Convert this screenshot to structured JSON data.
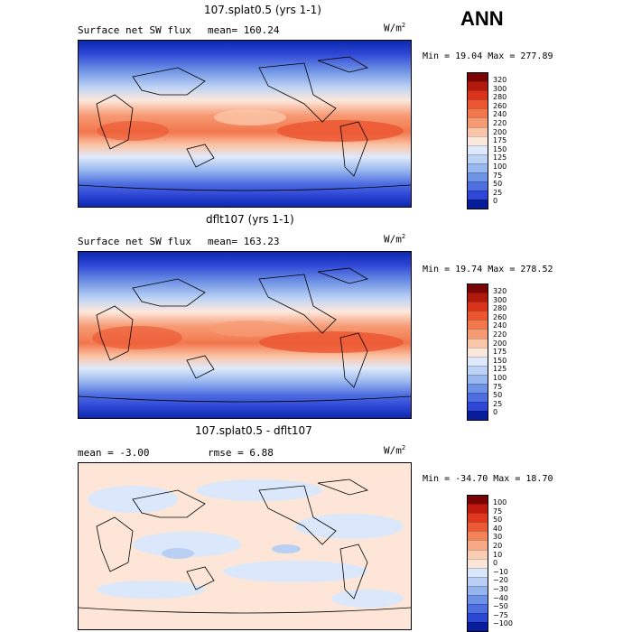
{
  "season": "ANN",
  "panels": [
    {
      "title": "107.splat0.5 (yrs 1-1)",
      "left_label": "Surface net SW flux",
      "mid_label": "mean= 160.24",
      "units": "W/m",
      "units_sup": "2",
      "minmax": "Min =  19.04 Max = 277.89",
      "levels": [
        "320",
        "300",
        "280",
        "260",
        "240",
        "220",
        "200",
        "175",
        "150",
        "125",
        "100",
        "75",
        "50",
        "25",
        "0"
      ],
      "colors": [
        "#7a0403",
        "#b01a0c",
        "#d9331b",
        "#eb5530",
        "#f2774d",
        "#f69a73",
        "#fbc5a7",
        "#fde8dc",
        "#dfe9fb",
        "#bdd3f5",
        "#99b8ef",
        "#6f93e5",
        "#4f6ee0",
        "#2f47d6",
        "#081d9b"
      ]
    },
    {
      "title": "dflt107 (yrs 1-1)",
      "left_label": "Surface net SW flux",
      "mid_label": "mean= 163.23",
      "units": "W/m",
      "units_sup": "2",
      "minmax": "Min =  19.74 Max = 278.52",
      "levels": [
        "320",
        "300",
        "280",
        "260",
        "240",
        "220",
        "200",
        "175",
        "150",
        "125",
        "100",
        "75",
        "50",
        "25",
        "0"
      ],
      "colors": [
        "#7a0403",
        "#b01a0c",
        "#d9331b",
        "#eb5530",
        "#f2774d",
        "#f69a73",
        "#fbc5a7",
        "#fde8dc",
        "#dfe9fb",
        "#bdd3f5",
        "#99b8ef",
        "#6f93e5",
        "#4f6ee0",
        "#2f47d6",
        "#081d9b"
      ]
    },
    {
      "title": "107.splat0.5 - dflt107",
      "left_label": "mean =  -3.00",
      "mid_label": "rmse =   6.88",
      "units": "W/m",
      "units_sup": "2",
      "minmax": "Min = -34.70 Max =  18.70",
      "levels": [
        "100",
        "75",
        "50",
        "40",
        "30",
        "20",
        "10",
        "0",
        "−10",
        "−20",
        "−30",
        "−40",
        "−50",
        "−75",
        "−100"
      ],
      "colors": [
        "#7a0403",
        "#c01a10",
        "#e0381f",
        "#ec5a35",
        "#f38259",
        "#f7a985",
        "#fbcdb4",
        "#fde6d8",
        "#dbe8fb",
        "#b9d0f4",
        "#95b5ee",
        "#6e92e6",
        "#4d6fdf",
        "#2d47d5",
        "#081d9b"
      ]
    }
  ]
}
